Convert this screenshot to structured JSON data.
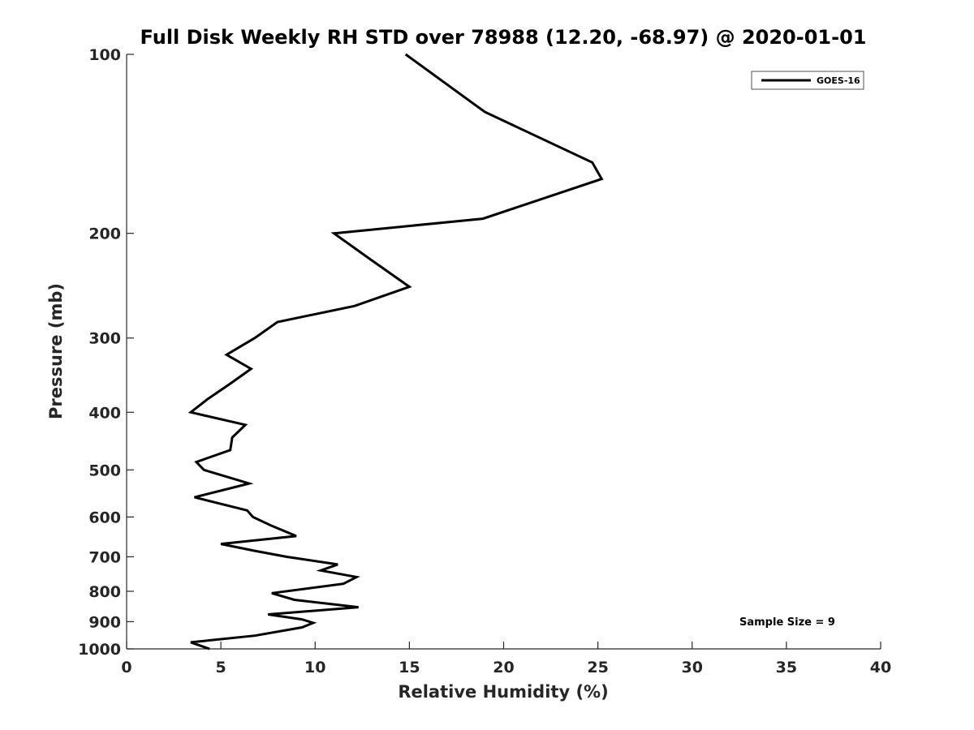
{
  "chart_data": {
    "type": "line",
    "title": "Full Disk Weekly RH STD over 78988 (12.20, -68.97) @ 2020-01-01",
    "xlabel": "Relative Humidity (%)",
    "ylabel": "Pressure (mb)",
    "xlim": [
      0,
      40
    ],
    "ylim": [
      100,
      1000
    ],
    "y_scale": "log",
    "y_inverted": true,
    "x_ticks": [
      0,
      5,
      10,
      15,
      20,
      25,
      30,
      35,
      40
    ],
    "y_ticks": [
      100,
      200,
      300,
      400,
      500,
      600,
      700,
      800,
      900,
      1000
    ],
    "grid": false,
    "legend_position": "top-right",
    "annotation": "Sample Size = 9",
    "series": [
      {
        "name": "GOES-16",
        "color": "#000000",
        "points": [
          [
            14.8,
            100
          ],
          [
            19.0,
            125
          ],
          [
            24.7,
            152
          ],
          [
            25.2,
            162
          ],
          [
            18.9,
            189
          ],
          [
            11.0,
            200
          ],
          [
            13.0,
            222
          ],
          [
            15.0,
            246
          ],
          [
            12.1,
            265
          ],
          [
            8.0,
            282
          ],
          [
            6.8,
            300
          ],
          [
            5.3,
            320
          ],
          [
            6.6,
            338
          ],
          [
            5.5,
            358
          ],
          [
            4.3,
            380
          ],
          [
            3.4,
            400
          ],
          [
            6.3,
            420
          ],
          [
            5.6,
            441
          ],
          [
            5.5,
            463
          ],
          [
            3.7,
            485
          ],
          [
            4.1,
            500
          ],
          [
            6.5,
            527
          ],
          [
            3.6,
            556
          ],
          [
            6.4,
            585
          ],
          [
            6.7,
            600
          ],
          [
            7.7,
            621
          ],
          [
            9.0,
            646
          ],
          [
            5.0,
            666
          ],
          [
            6.8,
            684
          ],
          [
            8.5,
            700
          ],
          [
            11.2,
            721
          ],
          [
            10.3,
            738
          ],
          [
            12.2,
            757
          ],
          [
            11.5,
            777
          ],
          [
            7.7,
            806
          ],
          [
            8.9,
            827
          ],
          [
            12.3,
            851
          ],
          [
            7.5,
            875
          ],
          [
            9.3,
            892
          ],
          [
            9.9,
            904
          ],
          [
            9.3,
            920
          ],
          [
            6.8,
            950
          ],
          [
            3.4,
            975
          ],
          [
            4.4,
            1000
          ]
        ]
      }
    ]
  }
}
